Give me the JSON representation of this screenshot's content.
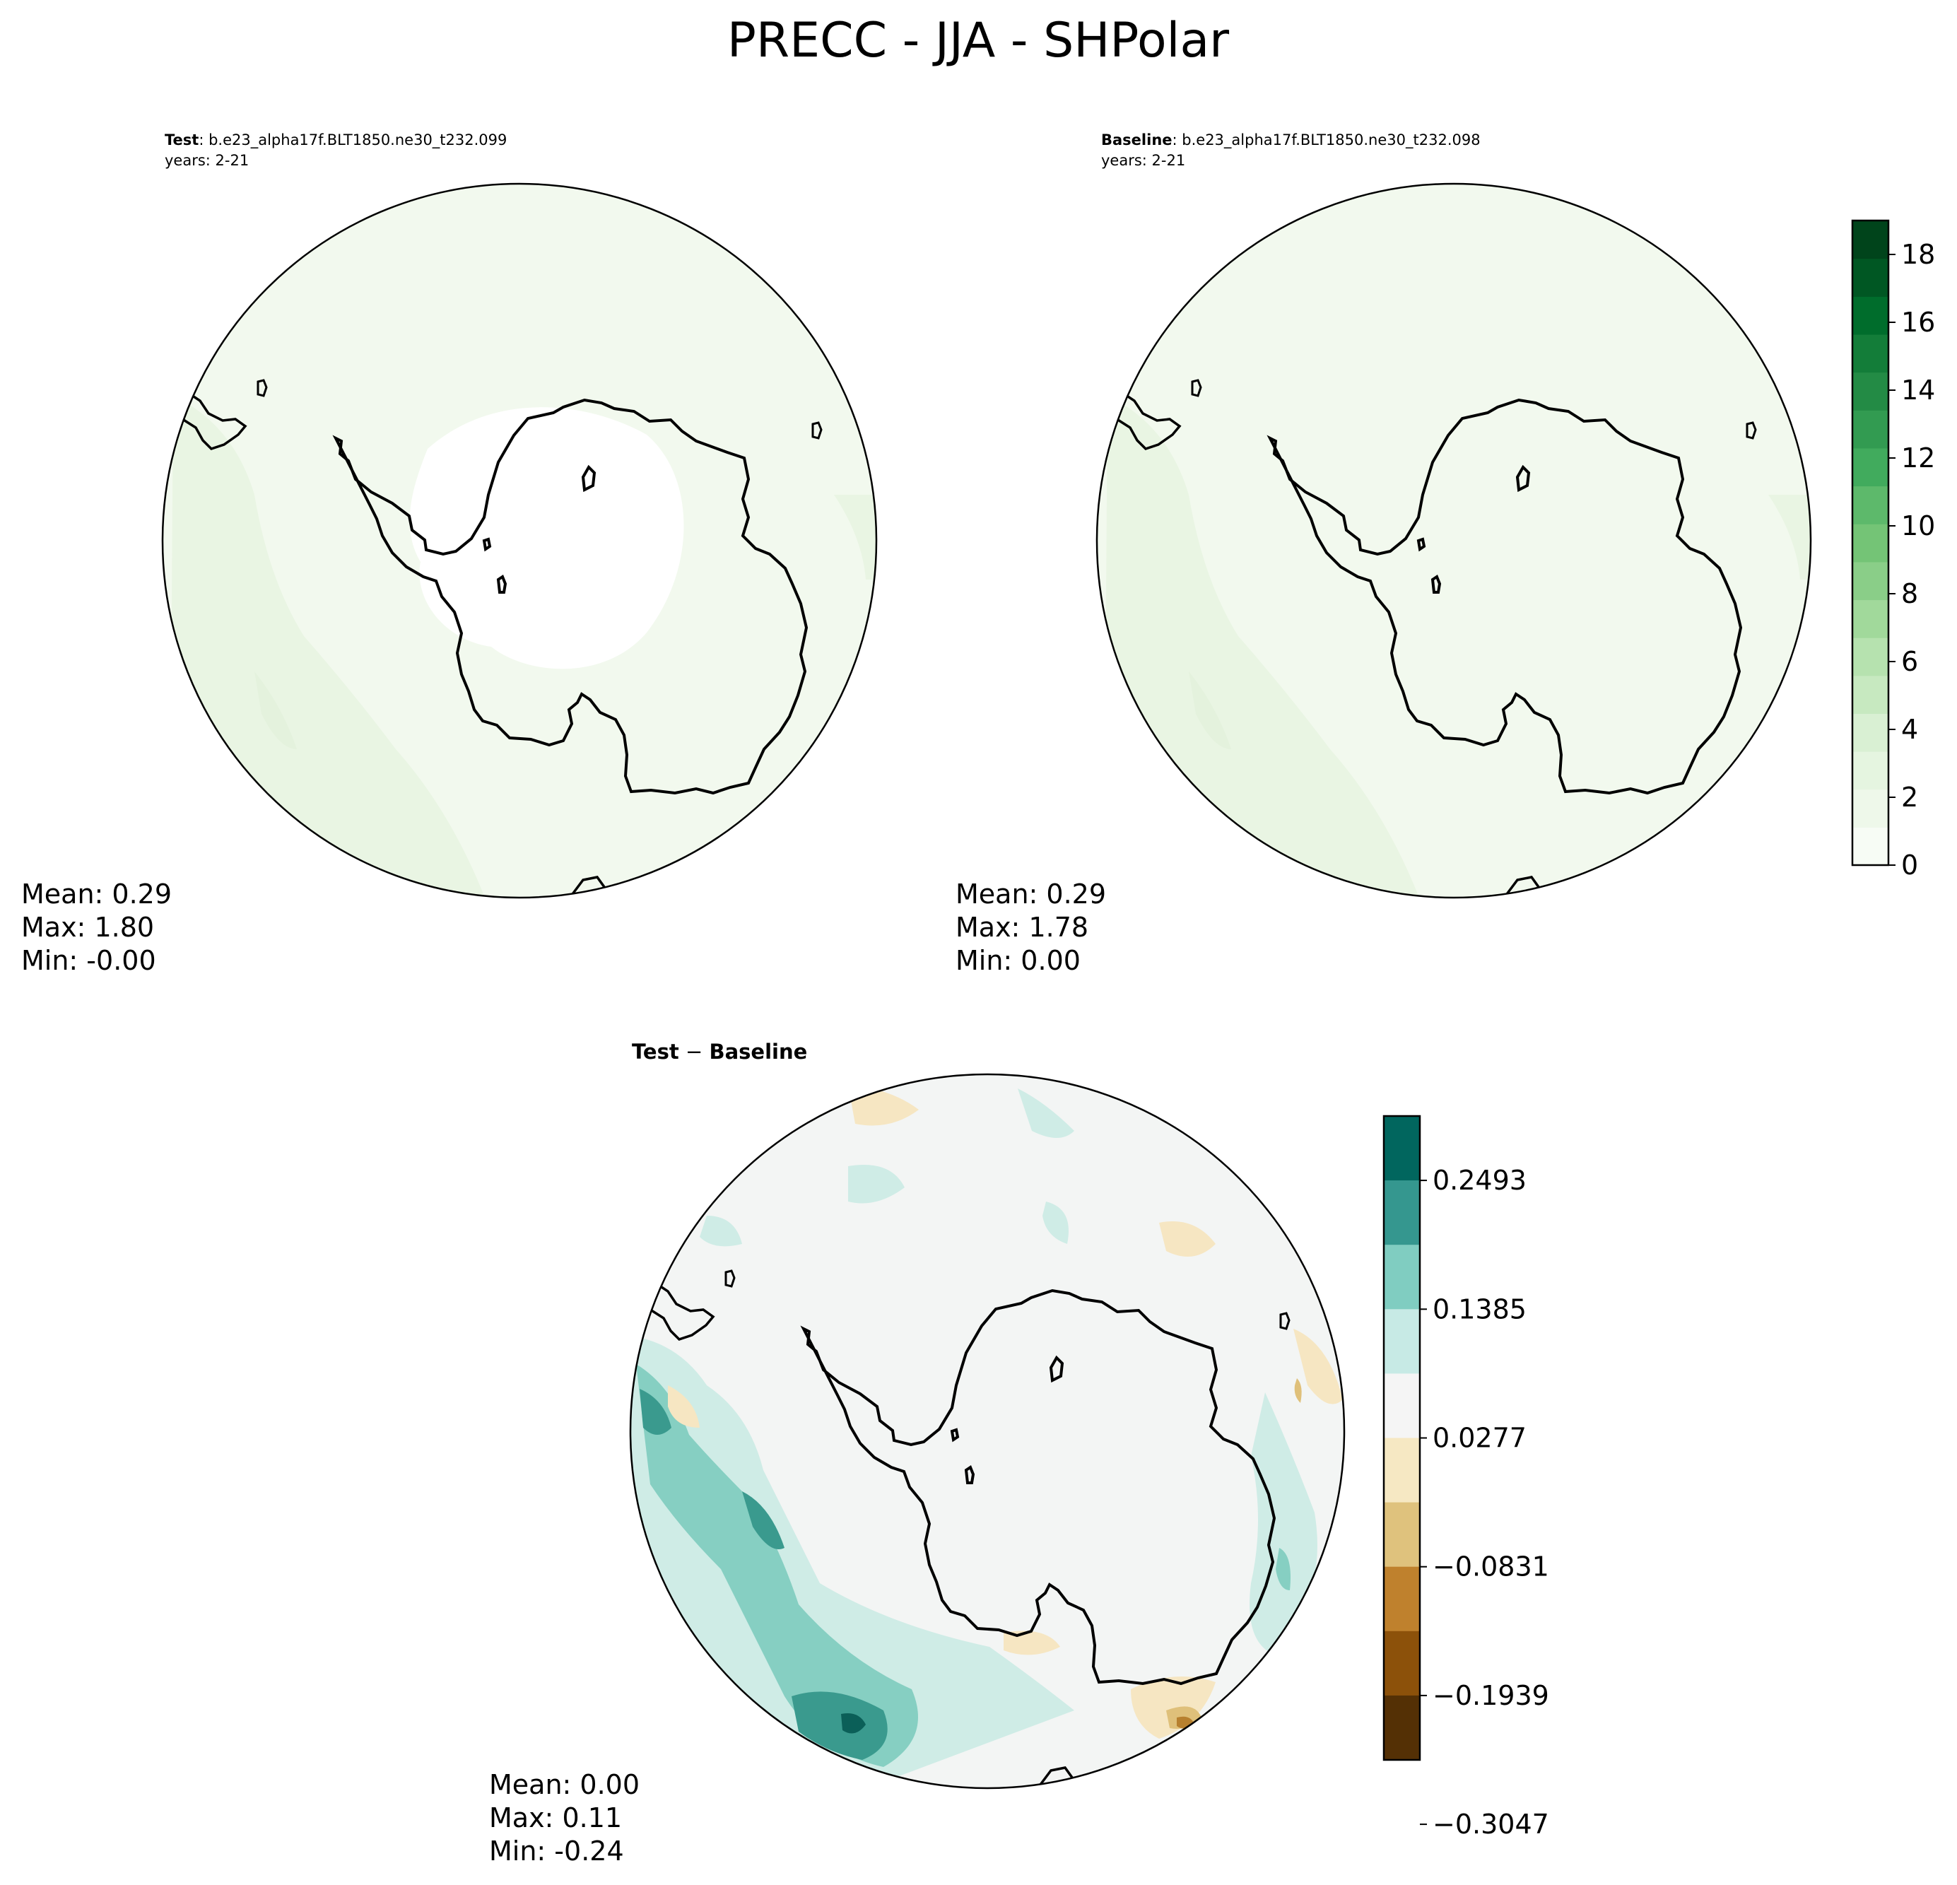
{
  "figure": {
    "title": "PRECC - JJA - SHPolar"
  },
  "panels": {
    "test": {
      "label_bold": "Test",
      "case": ": b.e23_alpha17f.BLT1850.ne30_t232.099",
      "years": "years: 2-21",
      "stats": {
        "mean": "Mean:  0.29",
        "max": "Max:  1.80",
        "min": "Min: -0.00"
      }
    },
    "baseline": {
      "label_bold": "Baseline",
      "case": ": b.e23_alpha17f.BLT1850.ne30_t232.098",
      "years": "years: 2-21",
      "stats": {
        "mean": "Mean:  0.29",
        "max": "Max:  1.78",
        "min": "Min:  0.00"
      }
    },
    "diff": {
      "title_a": "Test",
      "title_sep": " − ",
      "title_b": "Baseline",
      "stats": {
        "mean": "Mean:  0.00",
        "max": "Max:  0.11",
        "min": "Min: -0.24"
      }
    }
  },
  "colorbars": {
    "main": {
      "ticks": [
        "0",
        "2",
        "4",
        "6",
        "8",
        "10",
        "12",
        "14",
        "16",
        "18"
      ],
      "colors": [
        "#f7fcf5",
        "#eef8ea",
        "#e5f5e0",
        "#d9f0d3",
        "#c7e9c0",
        "#b6e2af",
        "#a1d99b",
        "#8ace88",
        "#74c476",
        "#5db96b",
        "#41ab5d",
        "#329b51",
        "#238b45",
        "#137d39",
        "#006d2c",
        "#005723",
        "#00441b"
      ]
    },
    "diff": {
      "ticks": [
        "0.2493",
        "0.1385",
        "0.0277",
        "−0.0831",
        "−0.1939",
        "−0.3047"
      ],
      "colors": [
        "#01665e",
        "#35978f",
        "#80cdc1",
        "#c7eae5",
        "#f5f5f5",
        "#f6e8c3",
        "#dfc27d",
        "#bf812d",
        "#8c510a",
        "#543005"
      ]
    }
  },
  "map_colors": {
    "ocean_main": "#f2f9ee",
    "ocean_main_dark": "#e9f5e3",
    "land_test": "#ffffff",
    "diff_bg": "#f3f5f4",
    "diff_pos_light": "#cfece6",
    "diff_pos_mid": "#86cfc2",
    "diff_pos_dark": "#3a9a8e",
    "diff_pos_darkest": "#0b5f58",
    "diff_neg_light": "#f6e6c2",
    "diff_neg_mid": "#dfc07a",
    "diff_neg_dark": "#b7802f"
  }
}
